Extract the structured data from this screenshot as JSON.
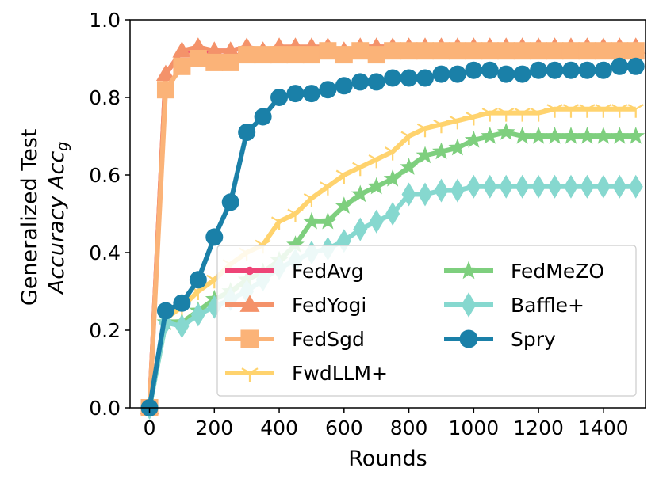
{
  "chart_data": {
    "type": "line",
    "title": "",
    "xlabel": "Rounds",
    "ylabel_line1": "Generalized Test",
    "ylabel_line2": "Accuracy Acc",
    "ylabel_subscript": "g",
    "xlim": [
      -60,
      1530
    ],
    "ylim": [
      0.0,
      1.0
    ],
    "xticks": [
      0,
      200,
      400,
      600,
      800,
      1000,
      1200,
      1400
    ],
    "yticks": [
      0.0,
      0.2,
      0.4,
      0.6,
      0.8,
      1.0
    ],
    "xtick_labels": [
      "0",
      "200",
      "400",
      "600",
      "800",
      "1000",
      "1200",
      "1400"
    ],
    "ytick_labels": [
      "0.0",
      "0.2",
      "0.4",
      "0.6",
      "0.8",
      "1.0"
    ],
    "legend_position": "lower-right",
    "legend_columns": 2,
    "series": [
      {
        "name": "FedAvg",
        "color": "#ee4477",
        "marker": "circle-small",
        "x": [
          0,
          50,
          100,
          150,
          200,
          250,
          300,
          350,
          400,
          450,
          500,
          550,
          600,
          650,
          700,
          750,
          800,
          850,
          900,
          950,
          1000,
          1050,
          1100,
          1150,
          1200,
          1250,
          1300,
          1350,
          1400,
          1450,
          1500
        ],
        "y": [
          0.0,
          0.86,
          0.92,
          0.92,
          0.92,
          0.92,
          0.93,
          0.92,
          0.92,
          0.93,
          0.92,
          0.93,
          0.92,
          0.93,
          0.93,
          0.93,
          0.93,
          0.93,
          0.93,
          0.93,
          0.93,
          0.93,
          0.93,
          0.93,
          0.93,
          0.93,
          0.93,
          0.93,
          0.93,
          0.93,
          0.93
        ]
      },
      {
        "name": "FedYogi",
        "color": "#f4926a",
        "marker": "triangle",
        "x": [
          0,
          50,
          100,
          150,
          200,
          250,
          300,
          350,
          400,
          450,
          500,
          550,
          600,
          650,
          700,
          750,
          800,
          850,
          900,
          950,
          1000,
          1050,
          1100,
          1150,
          1200,
          1250,
          1300,
          1350,
          1400,
          1450,
          1500
        ],
        "y": [
          0.0,
          0.86,
          0.92,
          0.93,
          0.92,
          0.92,
          0.93,
          0.92,
          0.93,
          0.93,
          0.93,
          0.93,
          0.92,
          0.93,
          0.93,
          0.93,
          0.93,
          0.93,
          0.93,
          0.93,
          0.93,
          0.93,
          0.93,
          0.93,
          0.93,
          0.93,
          0.93,
          0.93,
          0.93,
          0.93,
          0.93
        ]
      },
      {
        "name": "FedSgd",
        "color": "#fbb378",
        "marker": "square",
        "x": [
          0,
          50,
          100,
          150,
          200,
          250,
          300,
          350,
          400,
          450,
          500,
          550,
          600,
          650,
          700,
          750,
          800,
          850,
          900,
          950,
          1000,
          1050,
          1100,
          1150,
          1200,
          1250,
          1300,
          1350,
          1400,
          1450,
          1500
        ],
        "y": [
          0.0,
          0.82,
          0.88,
          0.9,
          0.89,
          0.89,
          0.91,
          0.91,
          0.91,
          0.91,
          0.91,
          0.92,
          0.91,
          0.92,
          0.91,
          0.92,
          0.92,
          0.92,
          0.92,
          0.92,
          0.92,
          0.92,
          0.92,
          0.92,
          0.92,
          0.92,
          0.92,
          0.92,
          0.92,
          0.92,
          0.92
        ]
      },
      {
        "name": "FwdLLM+",
        "color": "#ffd36e",
        "marker": "tri-down",
        "x": [
          0,
          50,
          100,
          150,
          200,
          250,
          300,
          350,
          400,
          450,
          500,
          550,
          600,
          650,
          700,
          750,
          800,
          850,
          900,
          950,
          1000,
          1050,
          1100,
          1150,
          1200,
          1250,
          1300,
          1350,
          1400,
          1450,
          1500
        ],
        "y": [
          0.0,
          0.23,
          0.26,
          0.3,
          0.33,
          0.37,
          0.4,
          0.42,
          0.48,
          0.5,
          0.54,
          0.57,
          0.6,
          0.62,
          0.64,
          0.66,
          0.7,
          0.72,
          0.73,
          0.74,
          0.75,
          0.76,
          0.76,
          0.76,
          0.76,
          0.77,
          0.77,
          0.77,
          0.77,
          0.77,
          0.77
        ]
      },
      {
        "name": "FedMeZO",
        "color": "#7ecf7e",
        "marker": "star",
        "x": [
          0,
          50,
          100,
          150,
          200,
          250,
          300,
          350,
          400,
          450,
          500,
          550,
          600,
          650,
          700,
          750,
          800,
          850,
          900,
          950,
          1000,
          1050,
          1100,
          1150,
          1200,
          1250,
          1300,
          1350,
          1400,
          1450,
          1500
        ],
        "y": [
          0.0,
          0.22,
          0.22,
          0.25,
          0.28,
          0.3,
          0.33,
          0.35,
          0.38,
          0.42,
          0.48,
          0.48,
          0.52,
          0.55,
          0.57,
          0.59,
          0.62,
          0.65,
          0.66,
          0.67,
          0.69,
          0.7,
          0.71,
          0.7,
          0.7,
          0.7,
          0.7,
          0.7,
          0.7,
          0.7,
          0.7
        ]
      },
      {
        "name": "Baffle+",
        "color": "#86d8cf",
        "marker": "thin-diamond",
        "x": [
          0,
          50,
          100,
          150,
          200,
          250,
          300,
          350,
          400,
          450,
          500,
          550,
          600,
          650,
          700,
          750,
          800,
          850,
          900,
          950,
          1000,
          1050,
          1100,
          1150,
          1200,
          1250,
          1300,
          1350,
          1400,
          1450,
          1500
        ],
        "y": [
          0.0,
          0.22,
          0.21,
          0.24,
          0.26,
          0.28,
          0.3,
          0.33,
          0.36,
          0.38,
          0.4,
          0.41,
          0.43,
          0.46,
          0.48,
          0.5,
          0.55,
          0.55,
          0.56,
          0.56,
          0.57,
          0.57,
          0.57,
          0.57,
          0.57,
          0.57,
          0.57,
          0.57,
          0.57,
          0.57,
          0.57
        ]
      },
      {
        "name": "Spry",
        "color": "#1a80a8",
        "marker": "circle-large",
        "x": [
          0,
          50,
          100,
          150,
          200,
          250,
          300,
          350,
          400,
          450,
          500,
          550,
          600,
          650,
          700,
          750,
          800,
          850,
          900,
          950,
          1000,
          1050,
          1100,
          1150,
          1200,
          1250,
          1300,
          1350,
          1400,
          1450,
          1500
        ],
        "y": [
          0.0,
          0.25,
          0.27,
          0.33,
          0.44,
          0.53,
          0.71,
          0.75,
          0.8,
          0.81,
          0.81,
          0.82,
          0.83,
          0.84,
          0.84,
          0.85,
          0.85,
          0.85,
          0.86,
          0.86,
          0.87,
          0.87,
          0.86,
          0.86,
          0.87,
          0.87,
          0.87,
          0.87,
          0.87,
          0.88,
          0.88
        ]
      }
    ]
  }
}
